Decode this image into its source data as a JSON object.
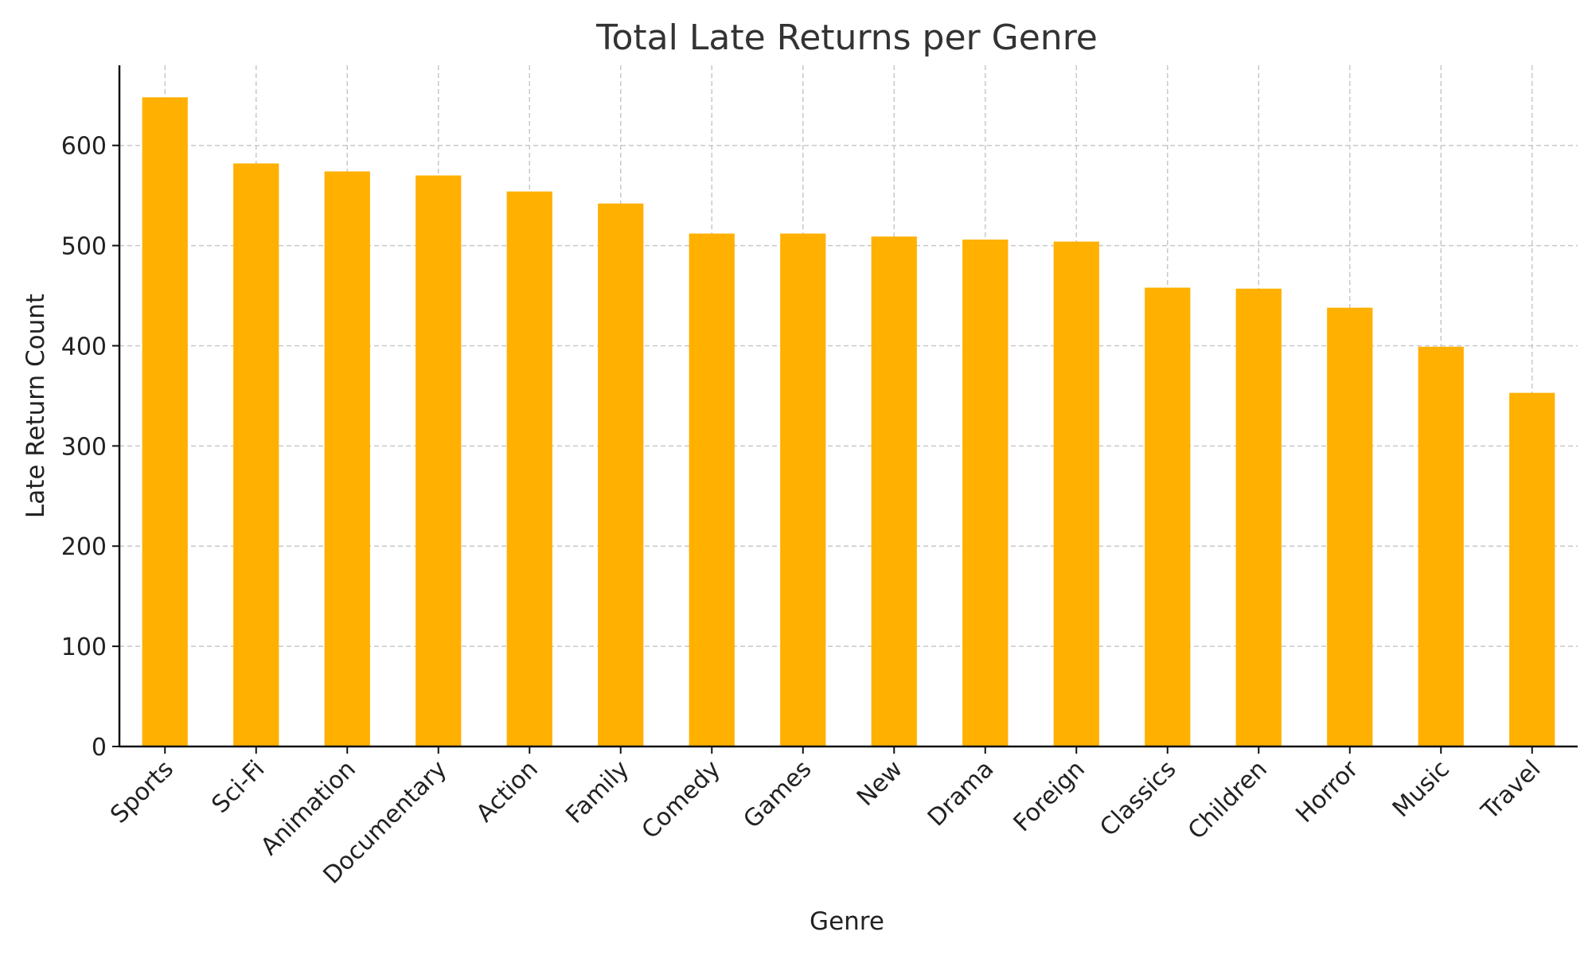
{
  "chart_data": {
    "type": "bar",
    "title": "Total Late Returns per Genre",
    "xlabel": "Genre",
    "ylabel": "Late Return Count",
    "categories": [
      "Sports",
      "Sci-Fi",
      "Animation",
      "Documentary",
      "Action",
      "Family",
      "Comedy",
      "Games",
      "New",
      "Drama",
      "Foreign",
      "Classics",
      "Children",
      "Horror",
      "Music",
      "Travel"
    ],
    "values": [
      648,
      582,
      574,
      570,
      554,
      542,
      512,
      512,
      509,
      506,
      504,
      458,
      457,
      438,
      399,
      353
    ],
    "yticks": [
      0,
      100,
      200,
      300,
      400,
      500,
      600
    ],
    "ylim": [
      0,
      680
    ],
    "grid": true,
    "bar_color": "#ffb000"
  }
}
